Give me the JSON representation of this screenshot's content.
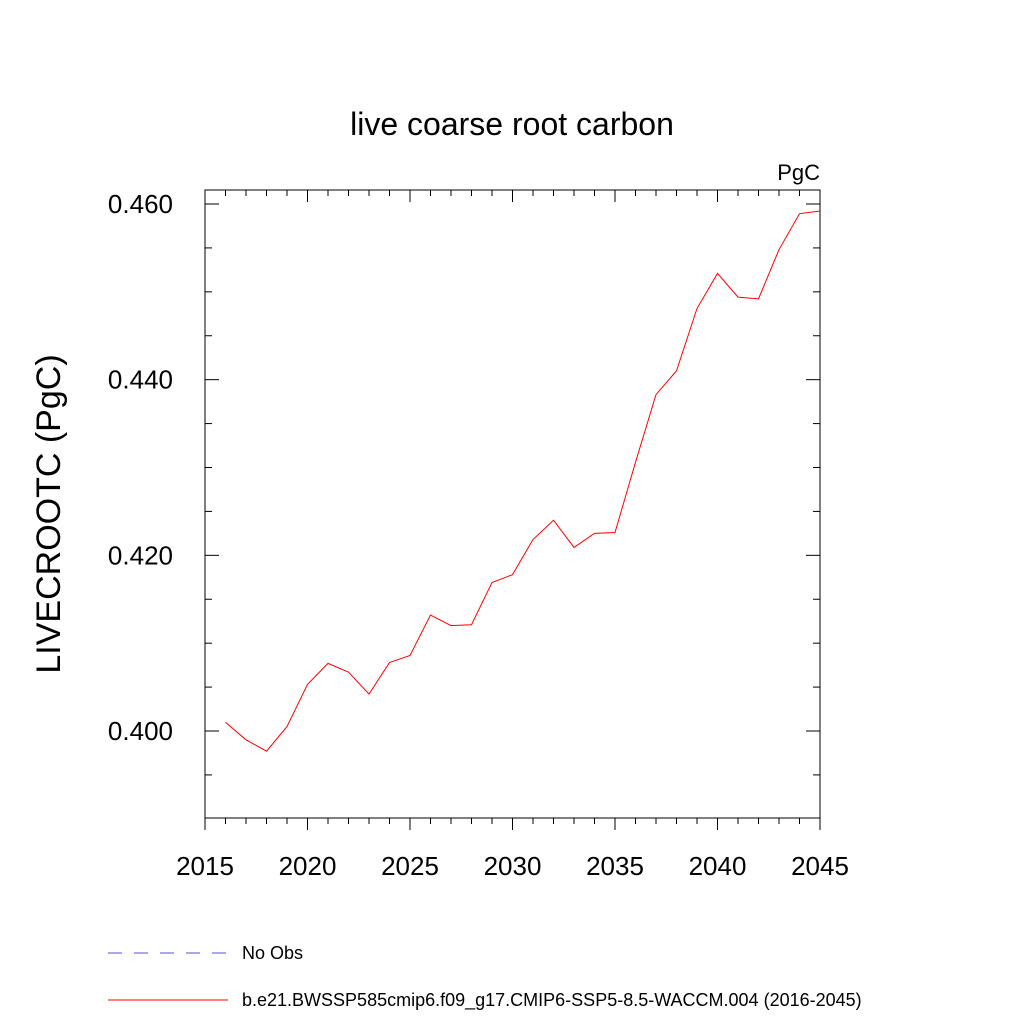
{
  "chart_data": {
    "type": "line",
    "title": "live coarse root carbon",
    "units_label": "PgC",
    "xlabel": "",
    "ylabel": "LIVECROOTC  (PgC)",
    "xlim": [
      2015,
      2045
    ],
    "ylim": [
      0.39,
      0.462
    ],
    "x_ticks": [
      2015,
      2020,
      2025,
      2030,
      2035,
      2040,
      2045
    ],
    "y_ticks": [
      0.4,
      0.42,
      0.44,
      0.46
    ],
    "x_tick_labels": [
      "2015",
      "2020",
      "2025",
      "2030",
      "2035",
      "2040",
      "2045"
    ],
    "y_tick_labels": [
      "0.400",
      "0.420",
      "0.440",
      "0.460"
    ],
    "grid": false,
    "legend_position": "bottom",
    "legend": [
      {
        "label": "No Obs",
        "color": "#5a4fcf",
        "style": "dashed"
      },
      {
        "label": "b.e21.BWSSP585cmip6.f09_g17.CMIP6-SSP5-8.5-WACCM.004 (2016-2045)",
        "color": "#ff0000",
        "style": "solid"
      }
    ],
    "series": [
      {
        "name": "b.e21.BWSSP585cmip6.f09_g17.CMIP6-SSP5-8.5-WACCM.004 (2016-2045)",
        "color": "#ff0000",
        "x": [
          2016,
          2017,
          2018,
          2019,
          2020,
          2021,
          2022,
          2023,
          2024,
          2025,
          2026,
          2027,
          2028,
          2029,
          2030,
          2031,
          2032,
          2033,
          2034,
          2035,
          2036,
          2037,
          2038,
          2039,
          2040,
          2041,
          2042,
          2043,
          2044,
          2045
        ],
        "y": [
          0.401,
          0.399,
          0.3977,
          0.4005,
          0.4053,
          0.4077,
          0.4067,
          0.4042,
          0.4078,
          0.4086,
          0.4132,
          0.412,
          0.4121,
          0.4169,
          0.4178,
          0.4218,
          0.424,
          0.4209,
          0.4225,
          0.4226,
          0.4306,
          0.4383,
          0.441,
          0.4481,
          0.4521,
          0.4494,
          0.4492,
          0.4548,
          0.4589,
          0.4592
        ]
      }
    ]
  }
}
